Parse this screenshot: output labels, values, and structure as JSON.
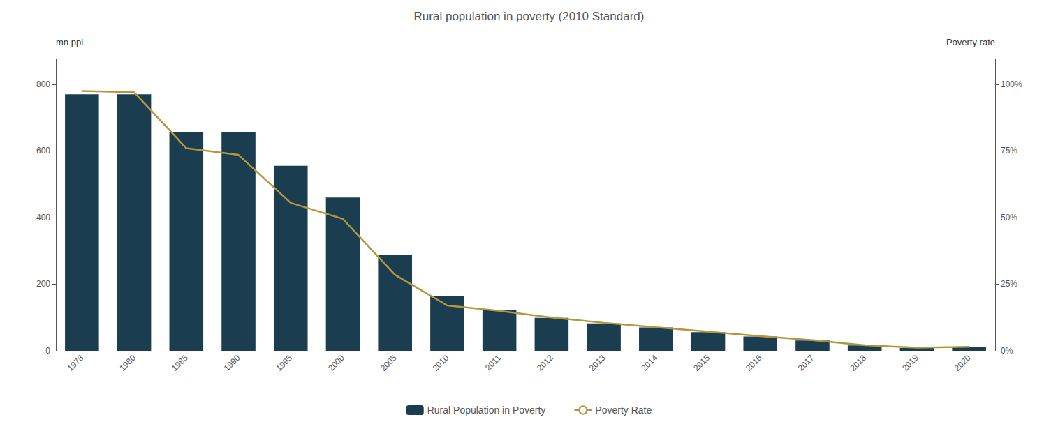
{
  "chart_data": {
    "type": "bar",
    "title": "Rural population in poverty (2010 Standard)",
    "ylabel": "mn ppl",
    "y2label": "Poverty rate",
    "categories": [
      "1978",
      "1980",
      "1985",
      "1990",
      "1995",
      "2000",
      "2005",
      "2010",
      "2011",
      "2012",
      "2013",
      "2014",
      "2015",
      "2016",
      "2017",
      "2018",
      "2019",
      "2020"
    ],
    "series": [
      {
        "name": "Rural Population in Poverty",
        "type": "bar",
        "color": "#1a3d4f",
        "values": [
          770,
          770,
          655,
          655,
          555,
          460,
          287,
          165,
          122,
          99,
          82,
          70,
          56,
          43,
          31,
          16,
          9,
          12
        ]
      },
      {
        "name": "Poverty Rate",
        "type": "line",
        "color": "#b5963e",
        "axis": "y2",
        "values": [
          97.5,
          97.0,
          76.0,
          73.5,
          55.5,
          49.5,
          28.5,
          17.0,
          15.0,
          12.5,
          10.5,
          8.8,
          7.2,
          5.5,
          4.0,
          2.1,
          1.2,
          1.5
        ]
      }
    ],
    "ylim": [
      0,
      875
    ],
    "yticks": [
      0,
      200,
      400,
      600,
      800
    ],
    "y2lim": [
      0,
      109.375
    ],
    "y2ticks": [
      {
        "value": 0,
        "label": "0%"
      },
      {
        "value": 25,
        "label": "25%"
      },
      {
        "value": 50,
        "label": "50%"
      },
      {
        "value": 75,
        "label": "75%"
      },
      {
        "value": 100,
        "label": "100%"
      }
    ],
    "grid": false,
    "legend": "bottom"
  }
}
